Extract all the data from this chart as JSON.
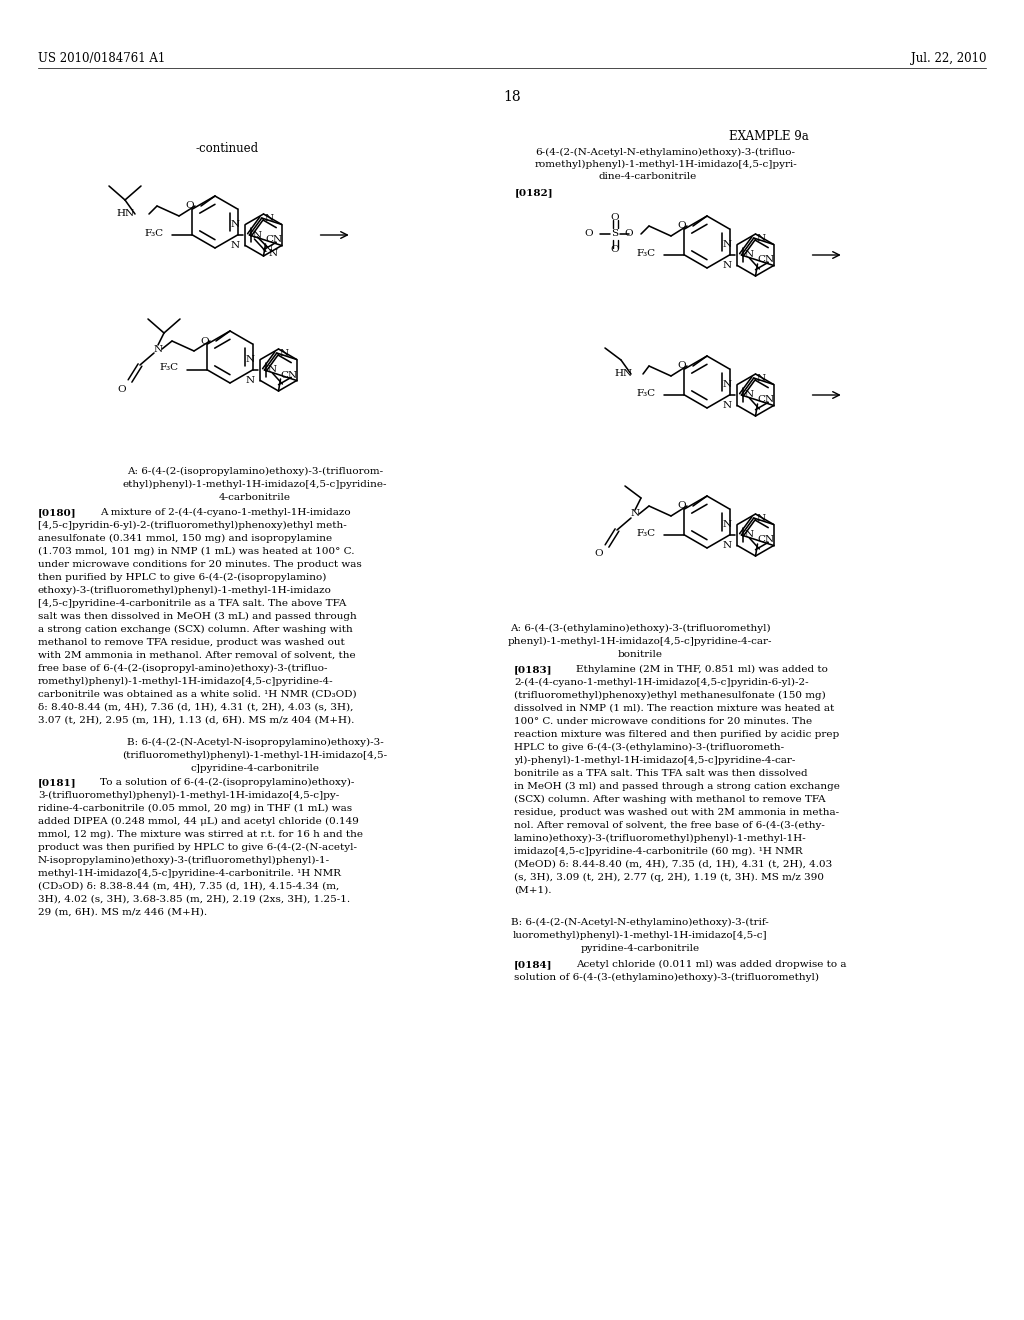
{
  "bg": "#ffffff",
  "header_left": "US 2010/0184761 A1",
  "header_right": "Jul. 22, 2010",
  "page_num": "18",
  "continued": "-continued",
  "example_title": "EXAMPLE 9a",
  "ex_sub1": "6-(4-(2-(N-Acetyl-N-ethylamino)ethoxy)-3-(trifluo-",
  "ex_sub2": "romethyl)phenyl)-1-methyl-1H-imidazo[4,5-c]pyri-",
  "ex_sub3": "dine-4-carbonitrile",
  "ref0182": "[0182]",
  "compA_left_1": "A: 6-(4-(2-(isopropylamino)ethoxy)-3-(trifluorom-",
  "compA_left_2": "ethyl)phenyl)-1-methyl-1H-imidazo[4,5-c]pyridine-",
  "compA_left_3": "4-carbonitrile",
  "compB_left_1": "B: 6-(4-(2-(N-Acetyl-N-isopropylamino)ethoxy)-3-",
  "compB_left_2": "(trifluoromethyl)phenyl)-1-methyl-1H-imidazo[4,5-",
  "compB_left_3": "c]pyridine-4-carbonitrile",
  "ref0180": "[0180]",
  "p180": "A mixture of 2-(4-(4-cyano-1-methyl-1H-imidazo\n[4,5-c]pyridin-6-yl)-2-(trifluoromethyl)phenoxy)ethyl meth-\nanesulfonate (0.341 mmol, 150 mg) and isopropylamine\n(1.703 mmol, 101 mg) in NMP (1 mL) was heated at 100° C.\nunder microwave conditions for 20 minutes. The product was\nthen purified by HPLC to give 6-(4-(2-(isopropylamino)\nethoxy)-3-(trifluoromethyl)phenyl)-1-methyl-1H-imidazo\n[4,5-c]pyridine-4-carbonitrile as a TFA salt. The above TFA\nsalt was then dissolved in MeOH (3 mL) and passed through\na strong cation exchange (SCX) column. After washing with\nmethanol to remove TFA residue, product was washed out\nwith 2M ammonia in methanol. After removal of solvent, the\nfree base of 6-(4-(2-(isopropyl-amino)ethoxy)-3-(trifluo-\nromethyl)phenyl)-1-methyl-1H-imidazo[4,5-c]pyridine-4-\ncarbonitrile was obtained as a white solid. ¹H NMR (CD₃OD)\nδ: 8.40-8.44 (m, 4H), 7.36 (d, 1H), 4.31 (t, 2H), 4.03 (s, 3H),\n3.07 (t, 2H), 2.95 (m, 1H), 1.13 (d, 6H). MS m/z 404 (M+H).",
  "compB_center_1": "B: 6-(4-(2-(N-Acetyl-N-isopropylamino)ethoxy)-3-",
  "compB_center_2": "(trifluoromethyl)phenyl)-1-methyl-1H-imidazo[4,5-",
  "compB_center_3": "c]pyridine-4-carbonitrile",
  "ref0181": "[0181]",
  "p181": "To a solution of 6-(4-(2-(isopropylamino)ethoxy)-\n3-(trifluoromethyl)phenyl)-1-methyl-1H-imidazo[4,5-c]py-\nridine-4-carbonitrile (0.05 mmol, 20 mg) in THF (1 mL) was\nadded DIPEA (0.248 mmol, 44 μL) and acetyl chloride (0.149\nmmol, 12 mg). The mixture was stirred at r.t. for 16 h and the\nproduct was then purified by HPLC to give 6-(4-(2-(N-acetyl-\nN-isopropylamino)ethoxy)-3-(trifluoromethyl)phenyl)-1-\nmethyl-1H-imidazo[4,5-c]pyridine-4-carbonitrile. ¹H NMR\n(CD₃OD) δ: 8.38-8.44 (m, 4H), 7.35 (d, 1H), 4.15-4.34 (m,\n3H), 4.02 (s, 3H), 3.68-3.85 (m, 2H), 2.19 (2xs, 3H), 1.25-1.\n29 (m, 6H). MS m/z 446 (M+H).",
  "compA_right_1": "A: 6-(4-(3-(ethylamino)ethoxy)-3-(trifluoromethyl)",
  "compA_right_2": "phenyl)-1-methyl-1H-imidazo[4,5-c]pyridine-4-car-",
  "compA_right_3": "bonitrile",
  "ref0183": "[0183]",
  "p183": "Ethylamine (2M in THF, 0.851 ml) was added to\n2-(4-(4-cyano-1-methyl-1H-imidazo[4,5-c]pyridin-6-yl)-2-\n(trifluoromethyl)phenoxy)ethyl methanesulfonate (150 mg)\ndissolved in NMP (1 ml). The reaction mixture was heated at\n100° C. under microwave conditions for 20 minutes. The\nreaction mixture was filtered and then purified by acidic prep\nHPLC to give 6-(4-(3-(ethylamino)-3-(trifluorometh-\nyl)-phenyl)-1-methyl-1H-imidazo[4,5-c]pyridine-4-car-\nbonitrile as a TFA salt. This TFA salt was then dissolved\nin MeOH (3 ml) and passed through a strong cation exchange\n(SCX) column. After washing with methanol to remove TFA\nresidue, product was washed out with 2M ammonia in metha-\nnol. After removal of solvent, the free base of 6-(4-(3-(ethy-\nlamino)ethoxy)-3-(trifluoromethyl)phenyl)-1-methyl-1H-\nimidazo[4,5-c]pyridine-4-carbonitrile (60 mg). ¹H NMR\n(MeOD) δ: 8.44-8.40 (m, 4H), 7.35 (d, 1H), 4.31 (t, 2H), 4.03\n(s, 3H), 3.09 (t, 2H), 2.77 (q, 2H), 1.19 (t, 3H). MS m/z 390\n(M+1).",
  "compB_right_1": "B: 6-(4-(2-(N-Acetyl-N-ethylamino)ethoxy)-3-(trif-",
  "compB_right_2": "luoromethyl)phenyl)-1-methyl-1H-imidazo[4,5-c]",
  "compB_right_3": "pyridine-4-carbonitrile",
  "ref0184": "[0184]",
  "p184_1": "Acetyl chloride (0.011 ml) was added dropwise to a",
  "p184_2": "solution of 6-(4-(3-(ethylamino)ethoxy)-3-(trifluoromethyl)"
}
